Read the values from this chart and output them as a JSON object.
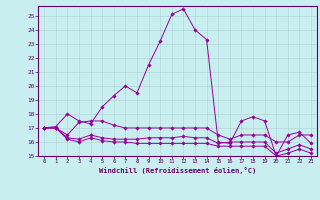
{
  "xlabel": "Windchill (Refroidissement éolien,°C)",
  "background_color": "#c8eef0",
  "line_color": "#990099",
  "xlim": [
    -0.5,
    23.5
  ],
  "ylim": [
    15,
    25.7
  ],
  "yticks": [
    15,
    16,
    17,
    18,
    19,
    20,
    21,
    22,
    23,
    24,
    25
  ],
  "xticks": [
    0,
    1,
    2,
    3,
    4,
    5,
    6,
    7,
    8,
    9,
    10,
    11,
    12,
    13,
    14,
    15,
    16,
    17,
    18,
    19,
    20,
    21,
    22,
    23
  ],
  "curves": [
    {
      "x": [
        0,
        1,
        2,
        3,
        4,
        5,
        6,
        7,
        8,
        9,
        10,
        11,
        12,
        13,
        14,
        15,
        16,
        17,
        18,
        19,
        20,
        21,
        22,
        23
      ],
      "y": [
        17,
        17.1,
        18,
        17.5,
        17.3,
        18.5,
        19.3,
        20.0,
        19.5,
        21.5,
        23.2,
        25.1,
        25.5,
        24.0,
        23.3,
        16.0,
        15.9,
        17.5,
        17.8,
        17.5,
        15.0,
        16.5,
        16.7,
        15.9
      ]
    },
    {
      "x": [
        0,
        1,
        2,
        3,
        4,
        5,
        6,
        7,
        8,
        9,
        10,
        11,
        12,
        13,
        14,
        15,
        16,
        17,
        18,
        19,
        20,
        21,
        22,
        23
      ],
      "y": [
        17,
        17,
        16.5,
        17.4,
        17.5,
        17.5,
        17.2,
        17.0,
        17.0,
        17.0,
        17.0,
        17.0,
        17.0,
        17.0,
        17.0,
        16.5,
        16.2,
        16.5,
        16.5,
        16.5,
        16.0,
        16.0,
        16.5,
        16.5
      ]
    },
    {
      "x": [
        0,
        1,
        2,
        3,
        4,
        5,
        6,
        7,
        8,
        9,
        10,
        11,
        12,
        13,
        14,
        15,
        16,
        17,
        18,
        19,
        20,
        21,
        22,
        23
      ],
      "y": [
        17,
        17,
        16.3,
        16.2,
        16.5,
        16.3,
        16.2,
        16.2,
        16.2,
        16.3,
        16.3,
        16.3,
        16.4,
        16.3,
        16.3,
        15.9,
        16.0,
        16.0,
        16.0,
        16.0,
        15.2,
        15.5,
        15.8,
        15.5
      ]
    },
    {
      "x": [
        0,
        1,
        2,
        3,
        4,
        5,
        6,
        7,
        8,
        9,
        10,
        11,
        12,
        13,
        14,
        15,
        16,
        17,
        18,
        19,
        20,
        21,
        22,
        23
      ],
      "y": [
        17,
        17,
        16.2,
        16.0,
        16.3,
        16.1,
        16.0,
        16.0,
        15.9,
        15.9,
        15.9,
        15.9,
        15.9,
        15.9,
        15.9,
        15.7,
        15.7,
        15.7,
        15.7,
        15.7,
        15.0,
        15.2,
        15.5,
        15.2
      ]
    }
  ]
}
